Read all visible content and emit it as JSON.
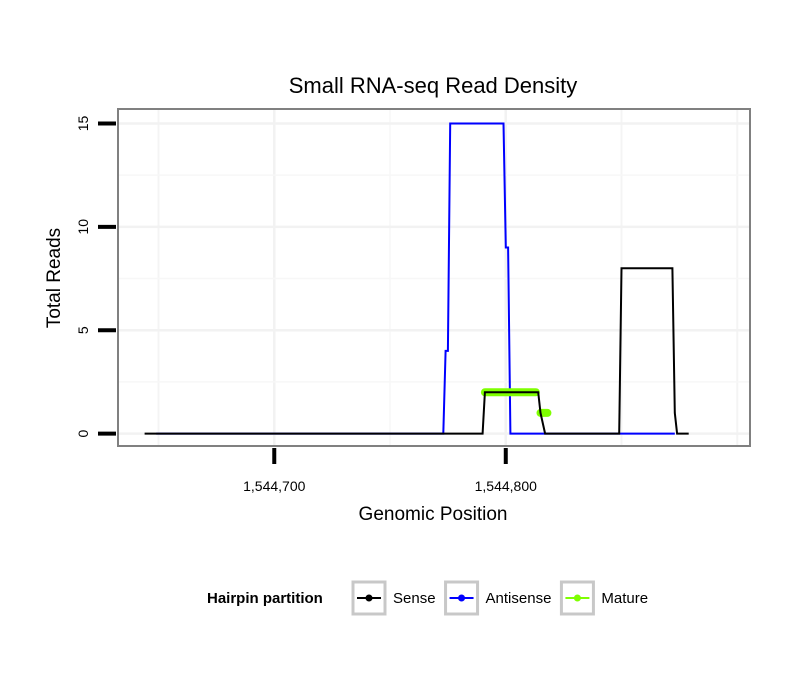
{
  "chart_data": {
    "type": "line",
    "title": "Small RNA-seq Read Density",
    "xlabel": "Genomic Position",
    "ylabel": "Total Reads",
    "xlim": [
      1544632.5,
      1544905.5
    ],
    "ylim": [
      -0.6,
      15.7
    ],
    "x_ticks": [
      {
        "value": 1544700,
        "label": "1,544,700"
      },
      {
        "value": 1544800,
        "label": "1,544,800"
      }
    ],
    "y_ticks": [
      {
        "value": 0,
        "label": "0"
      },
      {
        "value": 5,
        "label": "5"
      },
      {
        "value": 10,
        "label": "10"
      },
      {
        "value": 15,
        "label": "15"
      }
    ],
    "grid": true,
    "legend": {
      "title": "Hairpin partition",
      "position": "bottom",
      "entries": [
        {
          "name": "Sense",
          "color": "#000000"
        },
        {
          "name": "Antisense",
          "color": "#0000ff"
        },
        {
          "name": "Mature",
          "color": "#7fff00"
        }
      ]
    },
    "series": [
      {
        "name": "Sense",
        "color": "#000000",
        "x": [
          1544644,
          1544790,
          1544791,
          1544804,
          1544814,
          1544815,
          1544817,
          1544849,
          1544850,
          1544872,
          1544873,
          1544874,
          1544879
        ],
        "y": [
          0,
          0,
          2,
          2,
          2,
          1,
          0,
          0,
          8,
          8,
          1,
          0,
          0
        ]
      },
      {
        "name": "Antisense",
        "color": "#0000ff",
        "x": [
          1544649,
          1544773,
          1544774,
          1544775,
          1544776,
          1544799,
          1544800,
          1544801,
          1544802,
          1544803,
          1544849,
          1544873
        ],
        "y": [
          0,
          0,
          4,
          4,
          15,
          15,
          9,
          9,
          0,
          0,
          0,
          0
        ]
      },
      {
        "name": "Mature",
        "color": "#7fff00",
        "segments": [
          {
            "x": [
              1544791,
              1544813
            ],
            "y": [
              2,
              2
            ]
          },
          {
            "x": [
              1544815,
              1544818
            ],
            "y": [
              1,
              1
            ]
          }
        ]
      }
    ]
  }
}
